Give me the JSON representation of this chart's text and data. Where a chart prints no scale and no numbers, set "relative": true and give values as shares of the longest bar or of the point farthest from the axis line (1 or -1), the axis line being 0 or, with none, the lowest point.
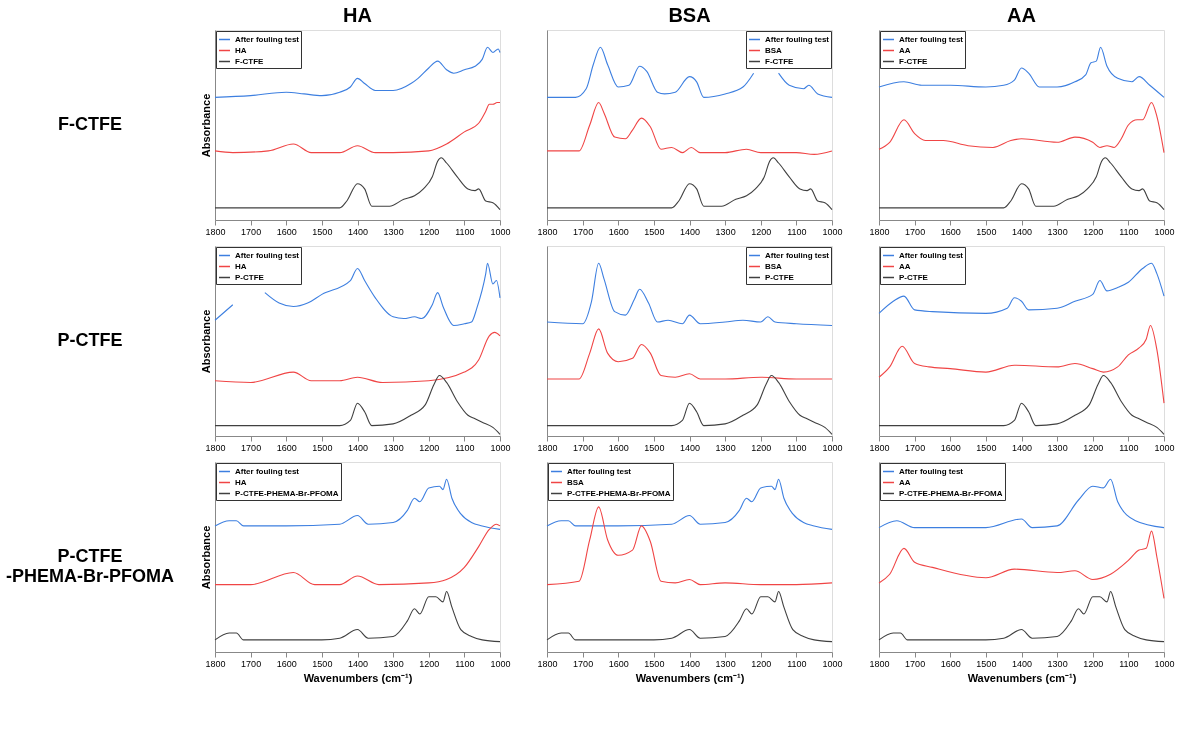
{
  "chart_data": [
    {
      "type": "line",
      "title": "HA",
      "ylabel": "Absorbance",
      "annotations": [
        "F-CTFE"
      ],
      "relative": true,
      "legend": "top left",
      "xlim": [
        1800,
        1000
      ],
      "xticks": [
        1800,
        1700,
        1600,
        1500,
        1400,
        1300,
        1200,
        1100,
        1000
      ],
      "grid": false,
      "series": [
        {
          "name": "After fouling test",
          "color": "#3d7fe0",
          "x": [
            1800,
            1700,
            1600,
            1550,
            1500,
            1450,
            1420,
            1400,
            1380,
            1350,
            1300,
            1250,
            1230,
            1200,
            1175,
            1150,
            1130,
            1100,
            1070,
            1050,
            1035,
            1020,
            1005,
            1000
          ],
          "values": [
            0.71,
            0.72,
            0.74,
            0.73,
            0.72,
            0.74,
            0.77,
            0.82,
            0.79,
            0.75,
            0.75,
            0.79,
            0.82,
            0.88,
            0.92,
            0.87,
            0.85,
            0.87,
            0.89,
            0.93,
            1.0,
            0.97,
            0.99,
            0.97
          ]
        },
        {
          "name": "HA",
          "color": "#f04545",
          "x": [
            1800,
            1750,
            1650,
            1580,
            1530,
            1450,
            1400,
            1350,
            1300,
            1200,
            1150,
            1100,
            1060,
            1040,
            1030,
            1020,
            1008,
            1000
          ],
          "values": [
            0.4,
            0.39,
            0.4,
            0.44,
            0.39,
            0.39,
            0.43,
            0.39,
            0.39,
            0.4,
            0.44,
            0.51,
            0.56,
            0.63,
            0.67,
            0.67,
            0.68,
            0.68
          ]
        },
        {
          "name": "F-CTFE",
          "color": "#404040",
          "x": [
            1800,
            1500,
            1450,
            1430,
            1400,
            1380,
            1360,
            1310,
            1270,
            1240,
            1215,
            1190,
            1175,
            1165,
            1150,
            1120,
            1090,
            1070,
            1060,
            1040,
            1020,
            1000
          ],
          "values": [
            0.07,
            0.07,
            0.07,
            0.11,
            0.21,
            0.18,
            0.08,
            0.08,
            0.12,
            0.14,
            0.18,
            0.25,
            0.34,
            0.36,
            0.33,
            0.25,
            0.18,
            0.17,
            0.18,
            0.11,
            0.1,
            0.06
          ]
        }
      ]
    },
    {
      "type": "line",
      "title": "BSA",
      "relative": true,
      "legend": "top right",
      "xlim": [
        1800,
        1000
      ],
      "xticks": [
        1800,
        1700,
        1600,
        1500,
        1400,
        1300,
        1200,
        1100,
        1000
      ],
      "grid": false,
      "series": [
        {
          "name": "After fouling test",
          "color": "#3d7fe0",
          "x": [
            1800,
            1720,
            1690,
            1670,
            1650,
            1630,
            1600,
            1570,
            1540,
            1520,
            1490,
            1470,
            1440,
            1400,
            1380,
            1360,
            1300,
            1250,
            1220,
            1190,
            1170,
            1150,
            1120,
            1080,
            1065,
            1040,
            1000
          ],
          "values": [
            0.71,
            0.71,
            0.76,
            0.9,
            1.0,
            0.9,
            0.77,
            0.78,
            0.89,
            0.86,
            0.74,
            0.73,
            0.74,
            0.83,
            0.8,
            0.71,
            0.73,
            0.77,
            0.85,
            null,
            null,
            0.85,
            0.78,
            0.76,
            0.78,
            0.73,
            0.71
          ]
        },
        {
          "name": "BSA",
          "color": "#f04545",
          "x": [
            1800,
            1710,
            1680,
            1655,
            1640,
            1610,
            1580,
            1560,
            1535,
            1510,
            1480,
            1450,
            1420,
            1395,
            1370,
            1300,
            1240,
            1200,
            1100,
            1050,
            1000
          ],
          "values": [
            0.4,
            0.4,
            0.55,
            0.68,
            0.62,
            0.48,
            0.47,
            0.52,
            0.59,
            0.54,
            0.41,
            0.42,
            0.39,
            0.42,
            0.39,
            0.39,
            0.41,
            0.39,
            0.39,
            0.38,
            0.4
          ]
        },
        {
          "name": "F-CTFE",
          "color": "#404040",
          "x": [
            1800,
            1500,
            1450,
            1430,
            1400,
            1380,
            1360,
            1310,
            1270,
            1240,
            1215,
            1190,
            1175,
            1165,
            1150,
            1120,
            1090,
            1070,
            1060,
            1040,
            1020,
            1000
          ],
          "values": [
            0.07,
            0.07,
            0.07,
            0.11,
            0.21,
            0.18,
            0.08,
            0.08,
            0.12,
            0.14,
            0.18,
            0.25,
            0.34,
            0.36,
            0.33,
            0.25,
            0.18,
            0.17,
            0.18,
            0.11,
            0.1,
            0.06
          ]
        }
      ]
    },
    {
      "type": "line",
      "title": "AA",
      "relative": true,
      "legend": "top left",
      "xlim": [
        1800,
        1000
      ],
      "xticks": [
        1800,
        1700,
        1600,
        1500,
        1400,
        1300,
        1200,
        1100,
        1000
      ],
      "grid": false,
      "series": [
        {
          "name": "After fouling test",
          "color": "#3d7fe0",
          "x": [
            1800,
            1730,
            1680,
            1600,
            1500,
            1450,
            1420,
            1400,
            1380,
            1350,
            1300,
            1250,
            1220,
            1205,
            1190,
            1178,
            1160,
            1130,
            1090,
            1070,
            1040,
            1000
          ],
          "values": [
            0.77,
            0.8,
            0.78,
            0.78,
            0.77,
            0.78,
            0.81,
            0.88,
            0.85,
            0.77,
            0.77,
            0.8,
            0.84,
            0.91,
            0.92,
            1.0,
            0.89,
            0.82,
            0.8,
            0.83,
            0.78,
            0.71
          ]
        },
        {
          "name": "AA",
          "color": "#f04545",
          "x": [
            1800,
            1770,
            1730,
            1700,
            1670,
            1620,
            1550,
            1480,
            1430,
            1400,
            1300,
            1250,
            1200,
            1180,
            1160,
            1140,
            1120,
            1100,
            1075,
            1060,
            1035,
            1020,
            1000
          ],
          "values": [
            0.41,
            0.45,
            0.58,
            0.5,
            0.46,
            0.46,
            0.43,
            0.42,
            0.46,
            0.47,
            0.45,
            0.48,
            0.45,
            0.42,
            0.43,
            0.42,
            0.47,
            0.55,
            0.58,
            0.58,
            0.68,
            0.6,
            0.39
          ]
        },
        {
          "name": "F-CTFE",
          "color": "#404040",
          "x": [
            1800,
            1500,
            1450,
            1430,
            1400,
            1380,
            1360,
            1310,
            1270,
            1240,
            1215,
            1190,
            1175,
            1165,
            1150,
            1120,
            1090,
            1070,
            1060,
            1040,
            1020,
            1000
          ],
          "values": [
            0.07,
            0.07,
            0.07,
            0.11,
            0.21,
            0.18,
            0.08,
            0.08,
            0.12,
            0.14,
            0.18,
            0.25,
            0.34,
            0.36,
            0.33,
            0.25,
            0.18,
            0.17,
            0.18,
            0.11,
            0.1,
            0.06
          ]
        }
      ]
    },
    {
      "type": "line",
      "ylabel": "Absorbance",
      "annotations": [
        "P-CTFE"
      ],
      "relative": true,
      "legend": "top left",
      "xlim": [
        1800,
        1000
      ],
      "xticks": [
        1800,
        1700,
        1600,
        1500,
        1400,
        1300,
        1200,
        1100,
        1000
      ],
      "grid": false,
      "series": [
        {
          "name": "After fouling test",
          "color": "#3d7fe0",
          "x": [
            1800,
            1750,
            1700,
            1660,
            1620,
            1580,
            1540,
            1500,
            1420,
            1400,
            1380,
            1350,
            1300,
            1270,
            1240,
            1220,
            1190,
            1175,
            1160,
            1130,
            1100,
            1080,
            1065,
            1040,
            1035,
            1020,
            1010,
            1000
          ],
          "values": [
            0.67,
            0.76,
            null,
            0.83,
            0.77,
            0.75,
            0.77,
            0.82,
            0.9,
            0.97,
            0.9,
            0.8,
            0.69,
            0.68,
            0.69,
            0.68,
            0.76,
            0.83,
            0.75,
            0.64,
            0.65,
            0.66,
            0.74,
            0.94,
            1.0,
            0.88,
            0.9,
            0.8
          ]
        },
        {
          "name": "HA",
          "color": "#f04545",
          "x": [
            1800,
            1700,
            1580,
            1530,
            1450,
            1400,
            1330,
            1200,
            1100,
            1060,
            1030,
            1015,
            1000
          ],
          "values": [
            0.32,
            0.31,
            0.37,
            0.32,
            0.32,
            0.34,
            0.31,
            0.32,
            0.37,
            0.44,
            0.58,
            0.6,
            0.58
          ]
        },
        {
          "name": "P-CTFE",
          "color": "#404040",
          "x": [
            1800,
            1450,
            1420,
            1400,
            1380,
            1360,
            1300,
            1250,
            1210,
            1185,
            1170,
            1150,
            1120,
            1090,
            1070,
            1050,
            1020,
            1000
          ],
          "values": [
            0.06,
            0.06,
            0.09,
            0.19,
            0.14,
            0.06,
            0.07,
            0.12,
            0.18,
            0.3,
            0.35,
            0.31,
            0.2,
            0.12,
            0.1,
            0.08,
            0.05,
            0.01
          ]
        }
      ]
    },
    {
      "type": "line",
      "relative": true,
      "legend": "top right",
      "xlim": [
        1800,
        1000
      ],
      "xticks": [
        1800,
        1700,
        1600,
        1500,
        1400,
        1300,
        1200,
        1100,
        1000
      ],
      "grid": false,
      "series": [
        {
          "name": "After fouling test",
          "color": "#3d7fe0",
          "x": [
            1800,
            1700,
            1675,
            1655,
            1640,
            1610,
            1580,
            1555,
            1540,
            1515,
            1490,
            1460,
            1420,
            1400,
            1370,
            1300,
            1250,
            1200,
            1180,
            1160,
            1100,
            1000
          ],
          "values": [
            0.66,
            0.65,
            0.78,
            1.0,
            0.91,
            0.72,
            0.7,
            0.79,
            0.85,
            0.77,
            0.66,
            0.67,
            0.65,
            0.7,
            0.65,
            0.66,
            0.67,
            0.66,
            0.69,
            0.66,
            0.65,
            0.64
          ]
        },
        {
          "name": "BSA",
          "color": "#f04545",
          "x": [
            1800,
            1710,
            1680,
            1655,
            1630,
            1600,
            1560,
            1535,
            1510,
            1480,
            1440,
            1400,
            1370,
            1300,
            1200,
            1100,
            1000
          ],
          "values": [
            0.33,
            0.33,
            0.48,
            0.62,
            0.48,
            0.43,
            0.45,
            0.53,
            0.48,
            0.35,
            0.34,
            0.36,
            0.33,
            0.33,
            0.34,
            0.33,
            0.33
          ]
        },
        {
          "name": "P-CTFE",
          "color": "#404040",
          "x": [
            1800,
            1450,
            1420,
            1400,
            1380,
            1360,
            1300,
            1250,
            1210,
            1185,
            1170,
            1150,
            1120,
            1090,
            1070,
            1050,
            1020,
            1000
          ],
          "values": [
            0.06,
            0.06,
            0.09,
            0.19,
            0.14,
            0.06,
            0.07,
            0.12,
            0.18,
            0.3,
            0.35,
            0.31,
            0.2,
            0.12,
            0.1,
            0.08,
            0.05,
            0.01
          ]
        }
      ]
    },
    {
      "type": "line",
      "relative": true,
      "legend": "top left",
      "xlim": [
        1800,
        1000
      ],
      "xticks": [
        1800,
        1700,
        1600,
        1500,
        1400,
        1300,
        1200,
        1100,
        1000
      ],
      "grid": false,
      "series": [
        {
          "name": "After fouling test",
          "color": "#3d7fe0",
          "x": [
            1800,
            1760,
            1730,
            1700,
            1650,
            1500,
            1440,
            1420,
            1400,
            1380,
            1300,
            1250,
            1200,
            1180,
            1160,
            1130,
            1100,
            1060,
            1035,
            1020,
            1000
          ],
          "values": [
            0.71,
            0.78,
            0.81,
            0.73,
            0.72,
            0.71,
            0.74,
            0.8,
            0.78,
            0.73,
            0.74,
            0.78,
            0.82,
            0.9,
            0.84,
            0.86,
            0.89,
            0.97,
            1.0,
            0.94,
            0.81
          ]
        },
        {
          "name": "AA",
          "color": "#f04545",
          "x": [
            1800,
            1770,
            1735,
            1700,
            1660,
            1600,
            1500,
            1420,
            1300,
            1250,
            1200,
            1170,
            1130,
            1100,
            1070,
            1050,
            1038,
            1020,
            1000
          ],
          "values": [
            0.34,
            0.4,
            0.52,
            0.42,
            0.4,
            0.39,
            0.37,
            0.41,
            0.4,
            0.42,
            0.39,
            0.37,
            0.4,
            0.47,
            0.51,
            0.56,
            0.64,
            0.5,
            0.19
          ]
        },
        {
          "name": "P-CTFE",
          "color": "#404040",
          "x": [
            1800,
            1450,
            1420,
            1400,
            1380,
            1360,
            1300,
            1250,
            1210,
            1185,
            1170,
            1150,
            1120,
            1090,
            1070,
            1050,
            1020,
            1000
          ],
          "values": [
            0.06,
            0.06,
            0.09,
            0.19,
            0.14,
            0.06,
            0.07,
            0.12,
            0.18,
            0.3,
            0.35,
            0.31,
            0.2,
            0.12,
            0.1,
            0.08,
            0.05,
            0.01
          ]
        }
      ]
    },
    {
      "type": "line",
      "ylabel": "Absorbance",
      "xlabel": "Wavenumbers (cm⁻¹)",
      "annotations": [
        "P-CTFE -PHEMA-Br-PFOMA"
      ],
      "relative": true,
      "legend": "top left",
      "xlim": [
        1800,
        1000
      ],
      "xticks": [
        1800,
        1700,
        1600,
        1500,
        1400,
        1300,
        1200,
        1100,
        1000
      ],
      "grid": false,
      "series": [
        {
          "name": "After fouling test",
          "color": "#3d7fe0",
          "x": [
            1800,
            1760,
            1740,
            1720,
            1600,
            1450,
            1400,
            1370,
            1300,
            1260,
            1240,
            1225,
            1200,
            1170,
            1160,
            1150,
            1135,
            1110,
            1080,
            1050,
            1000
          ],
          "values": [
            0.73,
            0.76,
            0.76,
            0.73,
            0.73,
            0.74,
            0.79,
            0.74,
            0.75,
            0.82,
            0.89,
            0.87,
            0.95,
            0.96,
            0.94,
            1.0,
            0.89,
            0.8,
            0.75,
            0.73,
            0.71
          ]
        },
        {
          "name": "HA",
          "color": "#f04545",
          "x": [
            1800,
            1700,
            1580,
            1520,
            1450,
            1400,
            1340,
            1200,
            1150,
            1100,
            1060,
            1030,
            1010,
            1000
          ],
          "values": [
            0.39,
            0.39,
            0.46,
            0.39,
            0.39,
            0.44,
            0.39,
            0.4,
            0.42,
            0.49,
            0.61,
            0.71,
            0.74,
            0.73
          ]
        },
        {
          "name": "P-CTFE-PHEMA-Br-PFOMA",
          "color": "#404040",
          "x": [
            1800,
            1760,
            1740,
            1720,
            1500,
            1450,
            1400,
            1370,
            1300,
            1260,
            1240,
            1225,
            1200,
            1180,
            1160,
            1150,
            1135,
            1110,
            1080,
            1050,
            1000
          ],
          "values": [
            0.07,
            0.11,
            0.11,
            0.07,
            0.07,
            0.08,
            0.13,
            0.08,
            0.09,
            0.18,
            0.25,
            0.22,
            0.32,
            0.32,
            0.29,
            0.35,
            0.26,
            0.13,
            0.09,
            0.07,
            0.06
          ]
        }
      ]
    },
    {
      "type": "line",
      "xlabel": "Wavenumbers (cm⁻¹)",
      "relative": true,
      "legend": "top left",
      "xlim": [
        1800,
        1000
      ],
      "xticks": [
        1800,
        1700,
        1600,
        1500,
        1400,
        1300,
        1200,
        1100,
        1000
      ],
      "grid": false,
      "series": [
        {
          "name": "After fouling test",
          "color": "#3d7fe0",
          "x": [
            1800,
            1760,
            1740,
            1720,
            1600,
            1450,
            1400,
            1370,
            1300,
            1260,
            1240,
            1225,
            1200,
            1170,
            1160,
            1150,
            1135,
            1110,
            1080,
            1050,
            1000
          ],
          "values": [
            0.73,
            0.76,
            0.76,
            0.73,
            0.73,
            0.74,
            0.79,
            0.74,
            0.75,
            0.82,
            0.89,
            0.87,
            0.95,
            0.96,
            0.94,
            1.0,
            0.89,
            0.8,
            0.75,
            0.73,
            0.71
          ]
        },
        {
          "name": "BSA",
          "color": "#f04545",
          "x": [
            1800,
            1710,
            1680,
            1655,
            1630,
            1600,
            1560,
            1535,
            1510,
            1480,
            1440,
            1400,
            1370,
            1300,
            1200,
            1100,
            1000
          ],
          "values": [
            0.39,
            0.41,
            0.65,
            0.84,
            0.65,
            0.56,
            0.59,
            0.73,
            0.64,
            0.41,
            0.4,
            0.42,
            0.39,
            0.4,
            0.39,
            0.39,
            0.4
          ]
        },
        {
          "name": "P-CTFE-PHEMA-Br-PFOMA",
          "color": "#404040",
          "x": [
            1800,
            1760,
            1740,
            1720,
            1500,
            1450,
            1400,
            1370,
            1300,
            1260,
            1240,
            1225,
            1200,
            1180,
            1160,
            1150,
            1135,
            1110,
            1080,
            1050,
            1000
          ],
          "values": [
            0.07,
            0.11,
            0.11,
            0.07,
            0.07,
            0.08,
            0.13,
            0.08,
            0.09,
            0.18,
            0.25,
            0.22,
            0.32,
            0.32,
            0.29,
            0.35,
            0.26,
            0.13,
            0.09,
            0.07,
            0.06
          ]
        }
      ]
    },
    {
      "type": "line",
      "xlabel": "Wavenumbers (cm⁻¹)",
      "relative": true,
      "legend": "top left",
      "xlim": [
        1800,
        1000
      ],
      "xticks": [
        1800,
        1700,
        1600,
        1500,
        1400,
        1300,
        1200,
        1100,
        1000
      ],
      "grid": false,
      "series": [
        {
          "name": "After fouling test",
          "color": "#3d7fe0",
          "x": [
            1800,
            1750,
            1700,
            1500,
            1400,
            1370,
            1300,
            1240,
            1200,
            1170,
            1150,
            1130,
            1080,
            1000
          ],
          "values": [
            0.72,
            0.76,
            0.72,
            0.72,
            0.77,
            0.72,
            0.73,
            0.88,
            0.96,
            0.95,
            1.0,
            0.87,
            0.76,
            0.72
          ]
        },
        {
          "name": "AA",
          "color": "#f04545",
          "x": [
            1800,
            1770,
            1730,
            1700,
            1650,
            1500,
            1420,
            1300,
            1250,
            1200,
            1150,
            1100,
            1070,
            1050,
            1035,
            1020,
            1000
          ],
          "values": [
            0.4,
            0.45,
            0.6,
            0.52,
            0.49,
            0.43,
            0.48,
            0.46,
            0.47,
            0.42,
            0.45,
            0.53,
            0.59,
            0.6,
            0.7,
            0.55,
            0.31
          ]
        },
        {
          "name": "P-CTFE-PHEMA-Br-PFOMA",
          "color": "#404040",
          "x": [
            1800,
            1760,
            1740,
            1720,
            1500,
            1450,
            1400,
            1370,
            1300,
            1260,
            1240,
            1225,
            1200,
            1180,
            1160,
            1150,
            1135,
            1110,
            1080,
            1050,
            1000
          ],
          "values": [
            0.07,
            0.11,
            0.11,
            0.07,
            0.07,
            0.08,
            0.13,
            0.08,
            0.09,
            0.18,
            0.25,
            0.22,
            0.32,
            0.32,
            0.29,
            0.35,
            0.26,
            0.13,
            0.09,
            0.07,
            0.06
          ]
        }
      ]
    }
  ]
}
